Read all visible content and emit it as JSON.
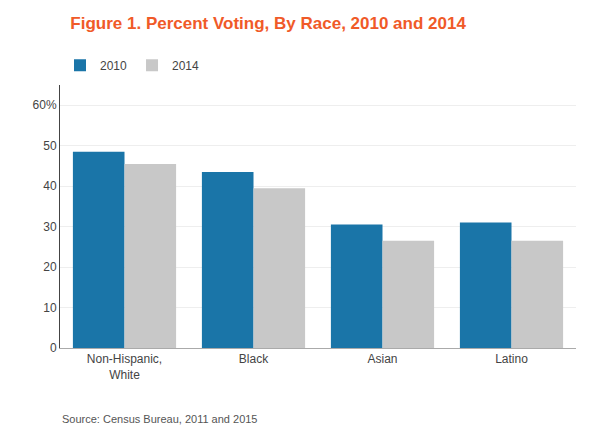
{
  "chart_data": {
    "type": "bar",
    "title": "Figure 1. Percent Voting, By Race, 2010 and 2014",
    "title_color": "#f05a28",
    "categories": [
      "Non-Hispanic,\nWhite",
      "Black",
      "Asian",
      "Latino"
    ],
    "series": [
      {
        "name": "2010",
        "color": "#1a75a8",
        "values": [
          48.5,
          43.5,
          30.5,
          31.0
        ]
      },
      {
        "name": "2014",
        "color": "#c8c8c8",
        "values": [
          45.5,
          39.5,
          26.5,
          26.5
        ]
      }
    ],
    "ylim": [
      0,
      65
    ],
    "yticks": [
      0,
      10,
      20,
      30,
      40,
      50,
      {
        "value": 60,
        "label": "60%"
      }
    ],
    "grid": true,
    "legend": "upper left",
    "annotations": [
      "Source: Census Bureau, 2011 and 2015"
    ]
  }
}
